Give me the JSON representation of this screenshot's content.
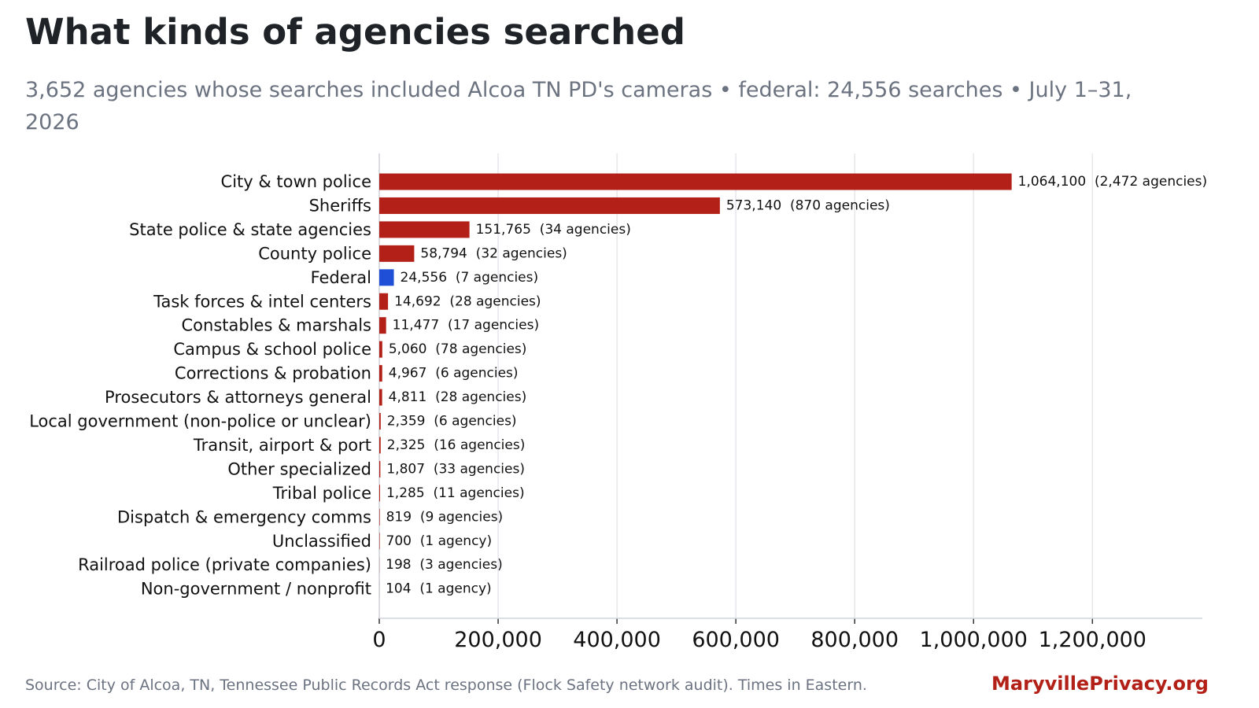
{
  "title": "What kinds of agencies searched",
  "subtitle": "3,652 agencies whose searches included Alcoa TN PD's cameras  •  federal: 24,556 searches  •  July 1–31, 2026",
  "source": "Source: City of Alcoa, TN, Tennessee Public Records Act response (Flock Safety network audit). Times in Eastern.",
  "brand": "MaryvillePrivacy.org",
  "colors": {
    "default_bar": "#b22018",
    "highlight_bar": "#1f4fd6",
    "grid": "#e5e7eb",
    "axis": "#d1d5db"
  },
  "chart_data": {
    "type": "bar",
    "orientation": "horizontal",
    "categories": [
      "City & town police",
      "Sheriffs",
      "State police & state agencies",
      "County police",
      "Federal",
      "Task forces & intel centers",
      "Constables & marshals",
      "Campus & school police",
      "Corrections & probation",
      "Prosecutors & attorneys general",
      "Local government (non-police or unclear)",
      "Transit, airport & port",
      "Other specialized",
      "Tribal police",
      "Dispatch & emergency comms",
      "Unclassified",
      "Railroad police (private companies)",
      "Non-government / nonprofit"
    ],
    "values": [
      1064100,
      573140,
      151765,
      58794,
      24556,
      14692,
      11477,
      5060,
      4967,
      4811,
      2359,
      2325,
      1807,
      1285,
      819,
      700,
      198,
      104
    ],
    "data_labels": [
      "1,064,100  (2,472 agencies)",
      "573,140  (870 agencies)",
      "151,765  (34 agencies)",
      "58,794  (32 agencies)",
      "24,556  (7 agencies)",
      "14,692  (28 agencies)",
      "11,477  (17 agencies)",
      "5,060  (78 agencies)",
      "4,967  (6 agencies)",
      "4,811  (28 agencies)",
      "2,359  (6 agencies)",
      "2,325  (16 agencies)",
      "1,807  (33 agencies)",
      "1,285  (11 agencies)",
      "819  (9 agencies)",
      "700  (1 agency)",
      "198  (3 agencies)",
      "104  (1 agency)"
    ],
    "highlight_category": "Federal",
    "x_ticks": [
      0,
      200000,
      400000,
      600000,
      800000,
      1000000,
      1200000
    ],
    "x_tick_labels": [
      "0",
      "200,000",
      "400,000",
      "600,000",
      "800,000",
      "1,000,000",
      "1,200,000"
    ],
    "xlim": [
      0,
      1385000
    ],
    "xlabel": "",
    "ylabel": "",
    "grid": "vertical"
  }
}
